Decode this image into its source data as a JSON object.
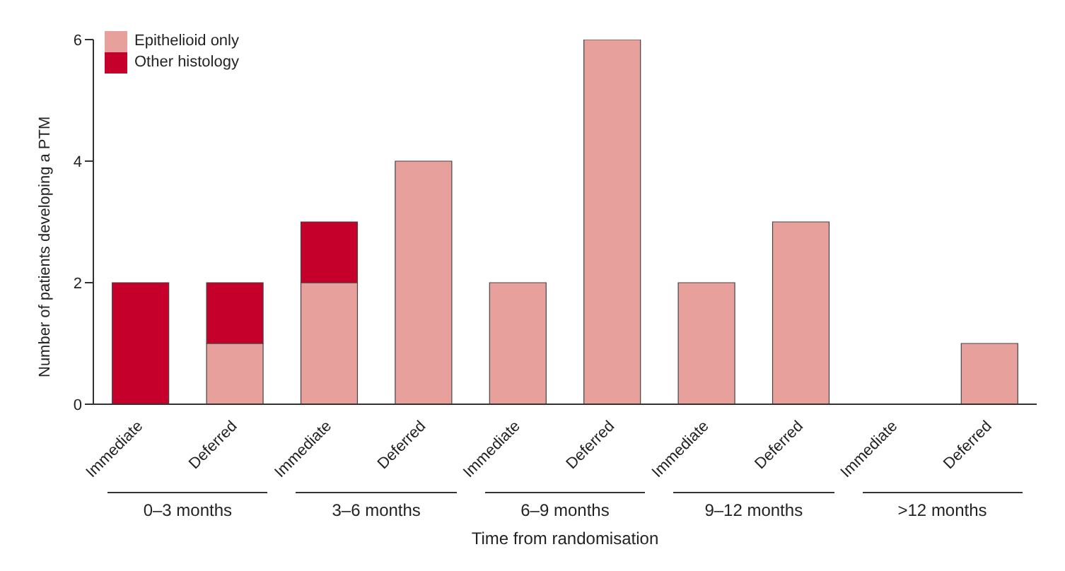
{
  "chart_data": {
    "type": "bar",
    "stacked": true,
    "xlabel": "Time from randomisation",
    "ylabel": "Number of patients developing a PTM",
    "categories": [
      "Immediate",
      "Deferred",
      "Immediate",
      "Deferred",
      "Immediate",
      "Deferred",
      "Immediate",
      "Deferred",
      "Immediate",
      "Deferred"
    ],
    "series": [
      {
        "name": "Epithelioid only",
        "color": "#e8a09c",
        "values": [
          0,
          1,
          2,
          4,
          2,
          6,
          2,
          3,
          0,
          1
        ]
      },
      {
        "name": "Other histology",
        "color": "#c4002b",
        "values": [
          2,
          1,
          1,
          0,
          0,
          0,
          0,
          0,
          0,
          0
        ]
      }
    ],
    "annotations": [
      "0–3 months",
      "3–6 months",
      "6–9 months",
      "9–12 months",
      ">12 months"
    ],
    "ylim": [
      0,
      6
    ],
    "yticks": [
      0,
      2,
      4,
      6
    ],
    "legend": "top left"
  }
}
